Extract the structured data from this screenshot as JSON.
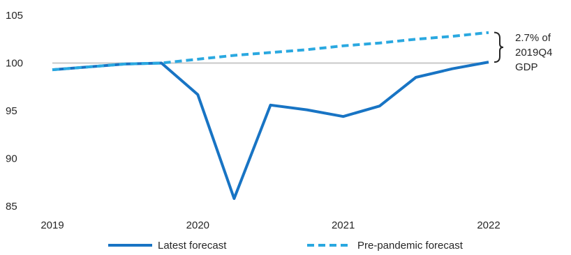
{
  "chart_data": {
    "type": "line",
    "title": "",
    "xlabel": "",
    "ylabel": "",
    "x": [
      2019.0,
      2019.25,
      2019.5,
      2019.75,
      2020.0,
      2020.25,
      2020.5,
      2020.75,
      2021.0,
      2021.25,
      2021.5,
      2021.75,
      2022.0
    ],
    "x_ticks": [
      "2019",
      "2020",
      "2021",
      "2022"
    ],
    "x_tick_values": [
      2019.0,
      2020.0,
      2021.0,
      2022.0
    ],
    "y_ticks": [
      "85",
      "90",
      "95",
      "100",
      "105"
    ],
    "y_tick_values": [
      85,
      90,
      95,
      100,
      105
    ],
    "xlim": [
      2019.0,
      2022.0
    ],
    "ylim": [
      85,
      105
    ],
    "reference_line": 100,
    "series": [
      {
        "name": "Latest forecast",
        "color": "#1874c4",
        "style": "solid",
        "values": [
          99.3,
          99.6,
          99.9,
          100.0,
          96.7,
          85.8,
          95.6,
          95.1,
          94.4,
          95.5,
          98.5,
          99.4,
          100.1
        ]
      },
      {
        "name": "Pre-pandemic forecast",
        "color": "#2aa8e0",
        "style": "dashed",
        "values": [
          99.3,
          99.6,
          99.9,
          100.0,
          100.4,
          100.8,
          101.1,
          101.4,
          101.8,
          102.1,
          102.5,
          102.8,
          103.2
        ]
      }
    ],
    "annotation": {
      "lines": [
        "2.7% of",
        "2019Q4",
        "GDP"
      ]
    },
    "legend": "bottom",
    "grid": false,
    "colors": {
      "reference_line": "#c8c8c8",
      "axis_text": "#262626"
    }
  }
}
